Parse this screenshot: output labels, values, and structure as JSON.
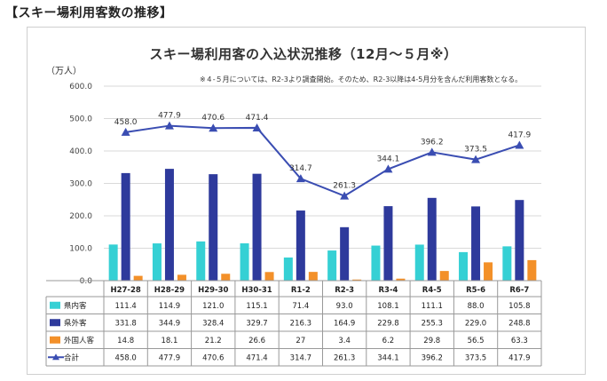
{
  "heading": "【スキー場利用客数の推移】",
  "colors": {
    "in_pref": "#35d0d4",
    "out_pref": "#2e3a9c",
    "foreign": "#f39029",
    "total": "#3a4db2"
  },
  "chart_data": {
    "type": "bar",
    "title": "スキー場利用客の入込状況推移（12月～５月※）",
    "unit_label": "（万人）",
    "note": "※４-５月については、R2-3より調査開始。そのため、R2-3以降は4-5月分を含んだ利用客数となる。",
    "ylim": [
      0,
      600
    ],
    "yticks": [
      "600.0",
      "500.0",
      "400.0",
      "300.0",
      "200.0",
      "100.0",
      "0.0"
    ],
    "categories": [
      "H27-28",
      "H28-29",
      "H29-30",
      "H30-31",
      "R1-2",
      "R2-3",
      "R3-4",
      "R4-5",
      "R5-6",
      "R6-7"
    ],
    "series": [
      {
        "name": "県内客",
        "kind": "bar",
        "values": [
          111.4,
          114.9,
          121.0,
          115.1,
          71.4,
          93.0,
          108.1,
          111.1,
          88.0,
          105.8
        ],
        "labels": [
          "111.4",
          "114.9",
          "121.0",
          "115.1",
          "71.4",
          "93.0",
          "108.1",
          "111.1",
          "88.0",
          "105.8"
        ]
      },
      {
        "name": "県外客",
        "kind": "bar",
        "values": [
          331.8,
          344.9,
          328.4,
          329.7,
          216.3,
          164.9,
          229.8,
          255.3,
          229.0,
          248.8
        ],
        "labels": [
          "331.8",
          "344.9",
          "328.4",
          "329.7",
          "216.3",
          "164.9",
          "229.8",
          "255.3",
          "229.0",
          "248.8"
        ]
      },
      {
        "name": "外国人客",
        "kind": "bar",
        "values": [
          14.8,
          18.1,
          21.2,
          26.6,
          27,
          3.4,
          6.2,
          29.8,
          56.5,
          63.3
        ],
        "labels": [
          "14.8",
          "18.1",
          "21.2",
          "26.6",
          "27",
          "3.4",
          "6.2",
          "29.8",
          "56.5",
          "63.3"
        ]
      },
      {
        "name": "合計",
        "kind": "line",
        "values": [
          458.0,
          477.9,
          470.6,
          471.4,
          314.7,
          261.3,
          344.1,
          396.2,
          373.5,
          417.9
        ],
        "labels": [
          "458.0",
          "477.9",
          "470.6",
          "471.4",
          "314.7",
          "261.3",
          "344.1",
          "396.2",
          "373.5",
          "417.9"
        ]
      }
    ]
  }
}
